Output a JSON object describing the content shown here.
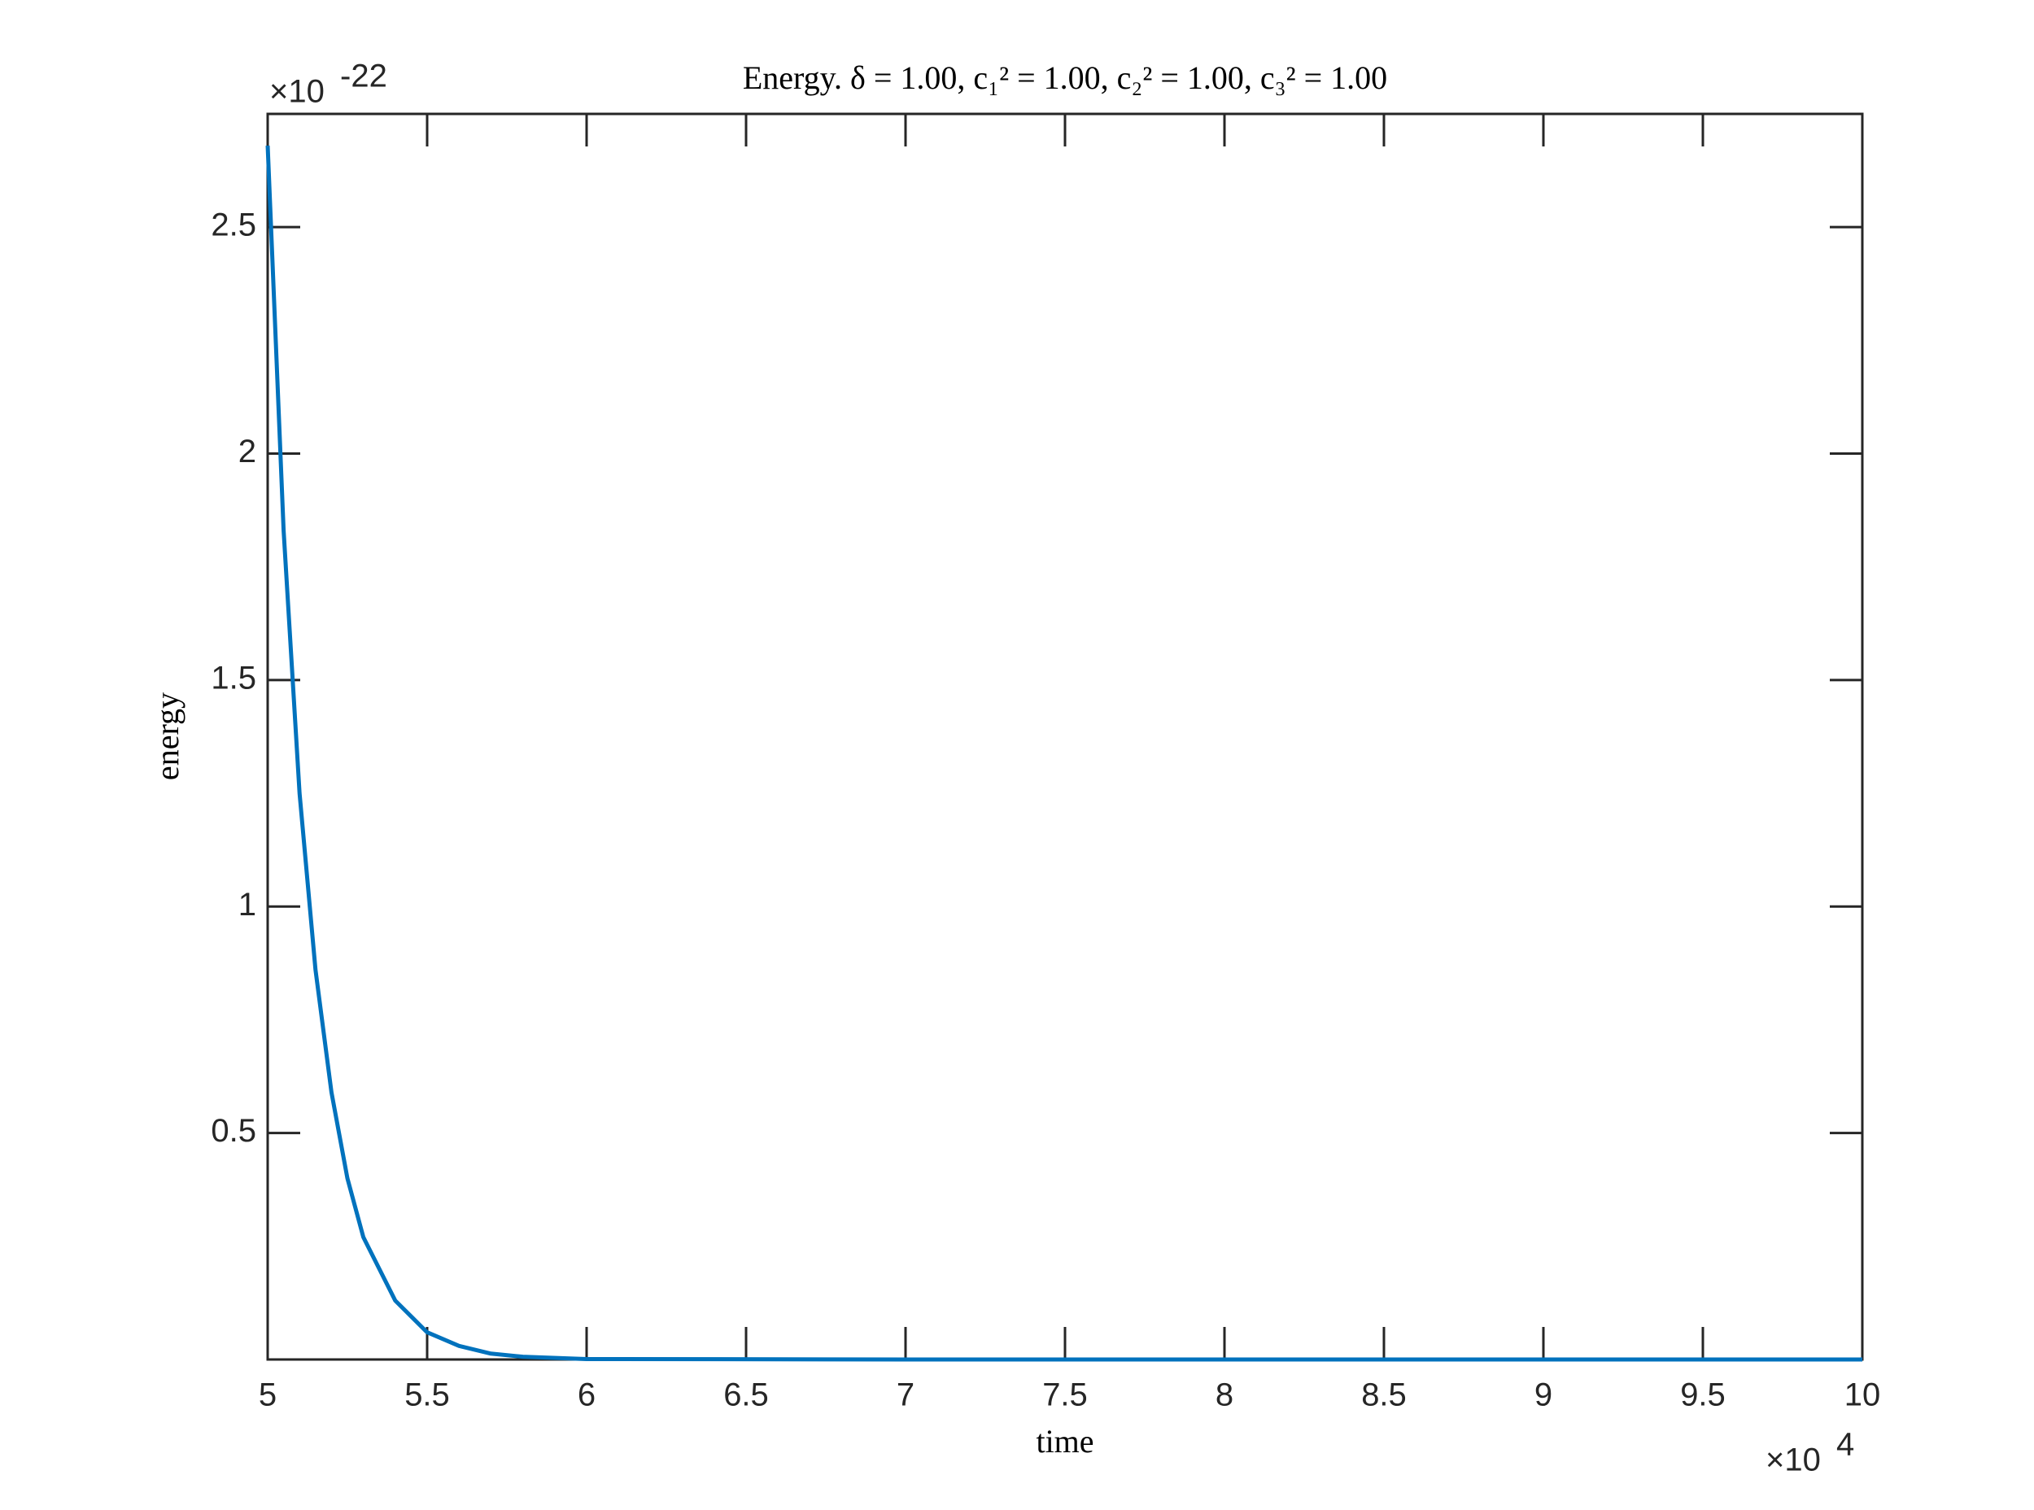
{
  "chart_data": {
    "type": "line",
    "title": "Energy.  δ = 1.00,  c₁² = 1.00,  c₂² = 1.00, c₃² = 1.00",
    "x_label": "time",
    "y_label": "energy",
    "x_multiplier": {
      "base": "×10",
      "power": "4"
    },
    "y_multiplier": {
      "base": "×10",
      "power": "-22"
    },
    "x": [
      5,
      5.05,
      5.1,
      5.15,
      5.2,
      5.25,
      5.3,
      5.4,
      5.5,
      5.6,
      5.7,
      5.8,
      6,
      7,
      8,
      9,
      10
    ],
    "series": [
      {
        "name": "energy",
        "color": "#0072bd",
        "values": [
          2.68,
          1.83,
          1.25,
          0.86,
          0.59,
          0.4,
          0.27,
          0.13,
          0.06,
          0.03,
          0.013,
          0.006,
          0.001,
          0,
          0,
          0,
          0
        ]
      }
    ],
    "xlim": [
      5,
      10
    ],
    "xticks": [
      5,
      5.5,
      6,
      6.5,
      7,
      7.5,
      8,
      8.5,
      9,
      9.5,
      10
    ],
    "ylim": [
      0,
      2.75
    ],
    "yticks": [
      0.5,
      1,
      1.5,
      2,
      2.5
    ]
  }
}
